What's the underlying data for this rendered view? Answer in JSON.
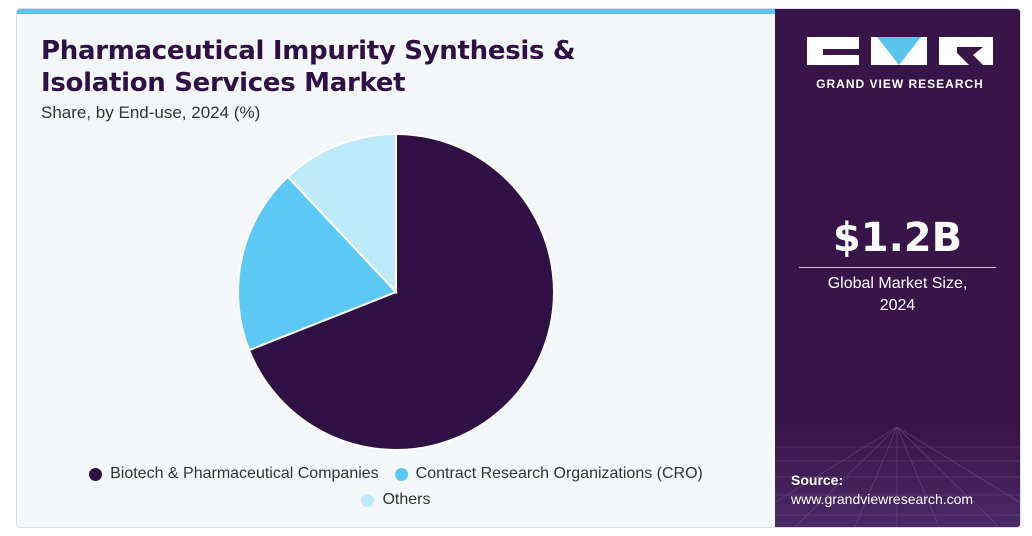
{
  "header": {
    "title_line1": "Pharmaceutical Impurity Synthesis &",
    "title_line2": "Isolation Services Market",
    "subtitle": "Share, by End-use, 2024 (%)"
  },
  "chart_data": {
    "type": "pie",
    "title": "Pharmaceutical Impurity Synthesis & Isolation Services Market",
    "subtitle": "Share, by End-use, 2024 (%)",
    "categories": [
      "Biotech & Pharmaceutical Companies",
      "Contract Research Organizations (CRO)",
      "Others"
    ],
    "values": [
      69,
      19,
      12
    ],
    "colors": [
      "#2e1044",
      "#5bc8f5",
      "#bde9f9"
    ],
    "start_angle_deg": 0,
    "direction": "clockwise",
    "legend_position": "bottom"
  },
  "sidebar": {
    "brand": "GRAND VIEW RESEARCH",
    "market_value": "$1.2B",
    "market_label_line1": "Global Market Size,",
    "market_label_line2": "2024",
    "source_label": "Source:",
    "source_url": "www.grandviewresearch.com"
  },
  "colors": {
    "background": "#f4f8fb",
    "accent": "#5bc4ef",
    "sidebar": "#371548",
    "title": "#2e1044"
  }
}
